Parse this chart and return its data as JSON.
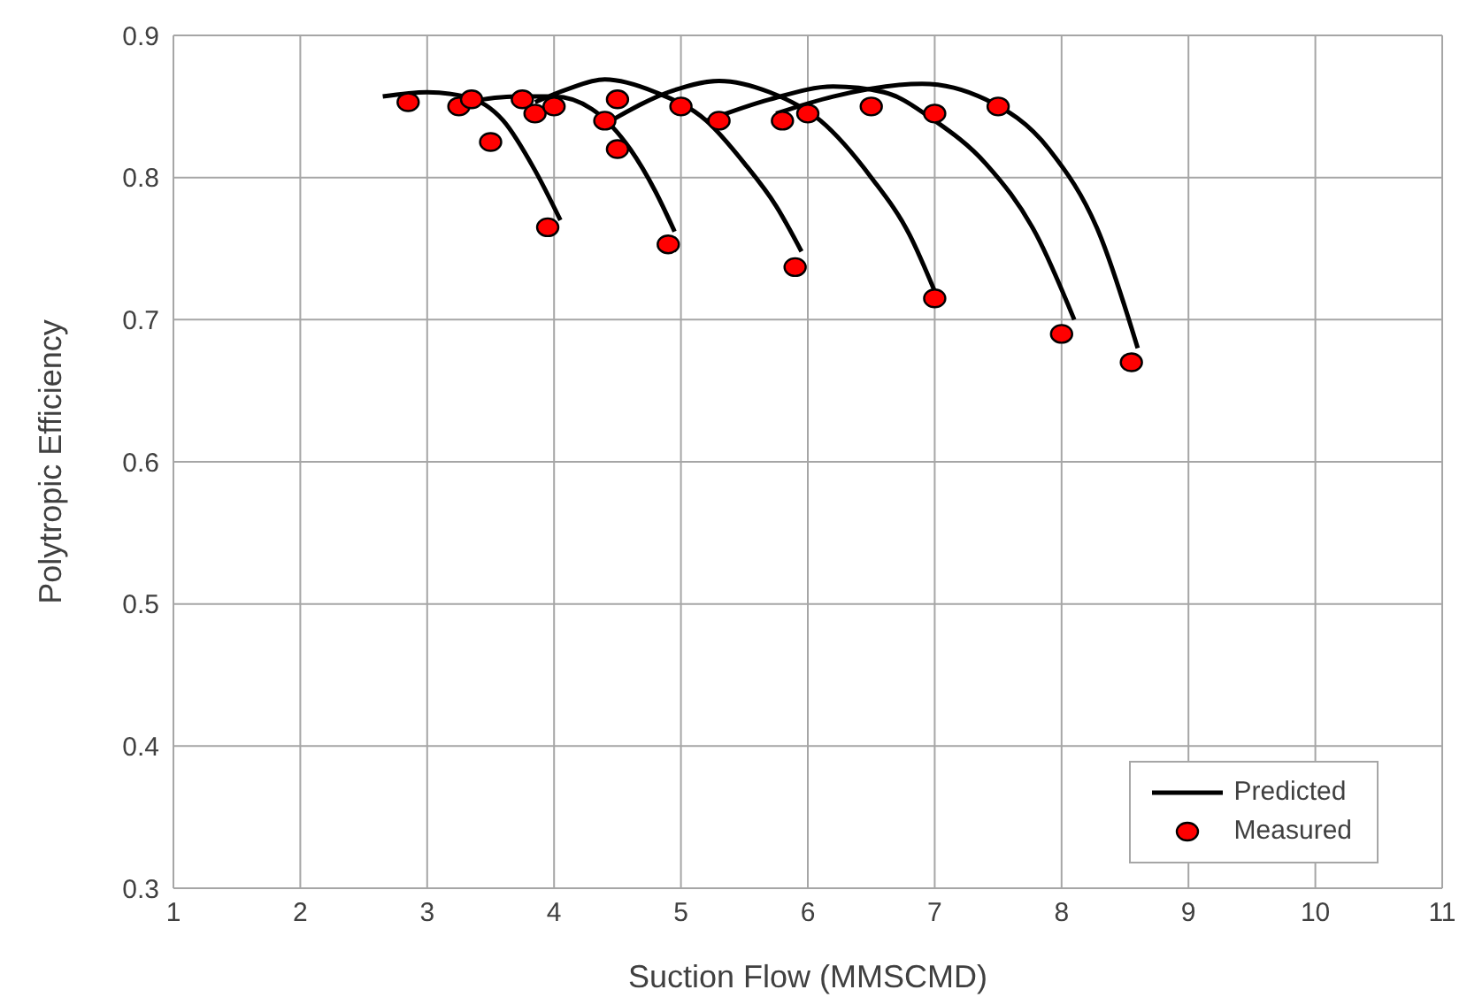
{
  "chart_data": {
    "type": "scatter",
    "xlabel": "Suction Flow (MMSCMD)",
    "ylabel": "Polytropic Efficiency",
    "xlim": [
      1,
      11
    ],
    "xticks": [
      1,
      2,
      3,
      4,
      5,
      6,
      7,
      8,
      9,
      10,
      11
    ],
    "ylim": [
      0.3,
      0.9
    ],
    "yticks": [
      0.3,
      0.4,
      0.5,
      0.6,
      0.7,
      0.8,
      0.9
    ],
    "grid": true,
    "legend": "bottom right",
    "series": [
      {
        "name": "Predicted",
        "type": "line",
        "color": "#000000",
        "marker": "none",
        "x": [
          2.65,
          3.0,
          3.3,
          3.6,
          3.85,
          4.05,
          null,
          3.3,
          3.7,
          4.0,
          4.3,
          4.6,
          4.8,
          4.95,
          null,
          3.85,
          4.1,
          4.4,
          4.8,
          5.2,
          5.5,
          5.75,
          5.95,
          null,
          4.45,
          4.9,
          5.3,
          5.7,
          6.1,
          6.5,
          6.8,
          7.0,
          null,
          5.2,
          5.7,
          6.2,
          6.6,
          7.0,
          7.4,
          7.8,
          8.1,
          null,
          5.75,
          6.2,
          6.9,
          7.4,
          7.9,
          8.3,
          8.6
        ],
        "values": [
          0.857,
          0.86,
          0.857,
          0.84,
          0.805,
          0.77,
          null,
          0.853,
          0.857,
          0.857,
          0.848,
          0.82,
          0.79,
          0.762,
          null,
          0.853,
          0.862,
          0.869,
          0.86,
          0.84,
          0.81,
          0.78,
          0.748,
          null,
          0.84,
          0.86,
          0.868,
          0.86,
          0.84,
          0.8,
          0.76,
          0.72,
          null,
          0.84,
          0.855,
          0.864,
          0.86,
          0.84,
          0.81,
          0.76,
          0.7,
          null,
          0.845,
          0.857,
          0.866,
          0.855,
          0.82,
          0.76,
          0.68
        ]
      },
      {
        "name": "Measured",
        "color": "#ff0000",
        "marker": "circle",
        "x": [
          2.85,
          3.25,
          3.35,
          3.5,
          3.75,
          3.85,
          4.0,
          3.95,
          4.4,
          4.5,
          4.5,
          4.9,
          5.0,
          5.3,
          5.8,
          6.0,
          5.9,
          6.5,
          7.0,
          7.5,
          7.0,
          8.0,
          8.55
        ],
        "values": [
          0.853,
          0.85,
          0.855,
          0.825,
          0.855,
          0.845,
          0.85,
          0.765,
          0.84,
          0.855,
          0.82,
          0.753,
          0.85,
          0.84,
          0.84,
          0.845,
          0.737,
          0.85,
          0.845,
          0.85,
          0.715,
          0.69,
          0.67
        ]
      }
    ]
  }
}
